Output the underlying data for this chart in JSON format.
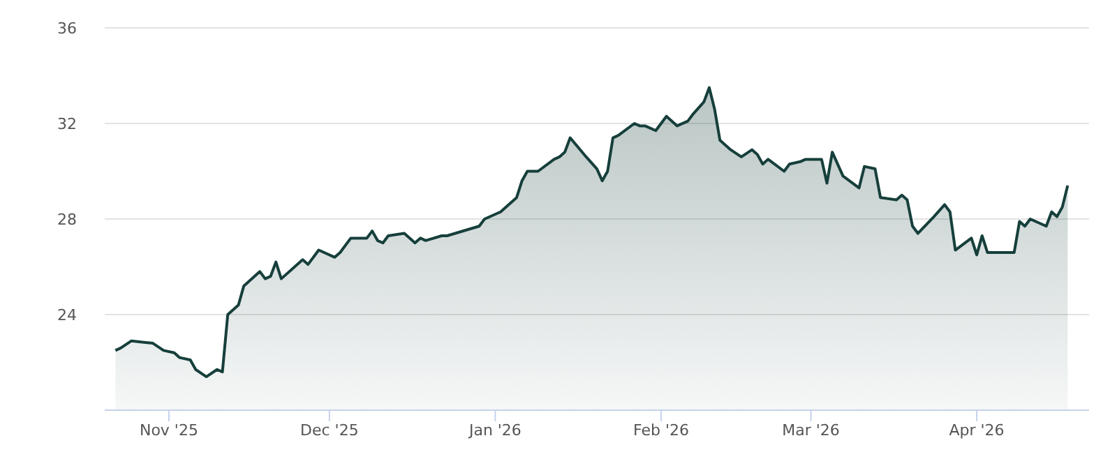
{
  "chart_data": {
    "type": "area",
    "x": [
      "2025-10-22",
      "2025-10-23",
      "2025-10-25",
      "2025-10-27",
      "2025-10-29",
      "2025-10-31",
      "2025-11-02",
      "2025-11-03",
      "2025-11-05",
      "2025-11-06",
      "2025-11-08",
      "2025-11-10",
      "2025-11-11",
      "2025-11-12",
      "2025-11-14",
      "2025-11-15",
      "2025-11-18",
      "2025-11-19",
      "2025-11-20",
      "2025-11-21",
      "2025-11-22",
      "2025-11-26",
      "2025-11-27",
      "2025-11-29",
      "2025-12-02",
      "2025-12-03",
      "2025-12-05",
      "2025-12-08",
      "2025-12-09",
      "2025-12-10",
      "2025-12-11",
      "2025-12-12",
      "2025-12-15",
      "2025-12-17",
      "2025-12-18",
      "2025-12-19",
      "2025-12-22",
      "2025-12-23",
      "2025-12-29",
      "2025-12-30",
      "2026-01-02",
      "2026-01-05",
      "2026-01-06",
      "2026-01-07",
      "2026-01-09",
      "2026-01-12",
      "2026-01-13",
      "2026-01-14",
      "2026-01-15",
      "2026-01-18",
      "2026-01-20",
      "2026-01-21",
      "2026-01-22",
      "2026-01-23",
      "2026-01-24",
      "2026-01-27",
      "2026-01-28",
      "2026-01-29",
      "2026-01-31",
      "2026-02-02",
      "2026-02-04",
      "2026-02-06",
      "2026-02-07",
      "2026-02-09",
      "2026-02-10",
      "2026-02-11",
      "2026-02-12",
      "2026-02-14",
      "2026-02-16",
      "2026-02-18",
      "2026-02-19",
      "2026-02-20",
      "2026-02-21",
      "2026-02-24",
      "2026-02-25",
      "2026-02-27",
      "2026-02-28",
      "2026-03-03",
      "2026-03-04",
      "2026-03-05",
      "2026-03-07",
      "2026-03-10",
      "2026-03-11",
      "2026-03-13",
      "2026-03-14",
      "2026-03-17",
      "2026-03-18",
      "2026-03-19",
      "2026-03-20",
      "2026-03-21",
      "2026-03-24",
      "2026-03-26",
      "2026-03-27",
      "2026-03-28",
      "2026-03-31",
      "2026-04-01",
      "2026-04-02",
      "2026-04-03",
      "2026-04-08",
      "2026-04-09",
      "2026-04-10",
      "2026-04-11",
      "2026-04-14",
      "2026-04-15",
      "2026-04-16",
      "2026-04-17",
      "2026-04-18"
    ],
    "series": [
      {
        "color": "#163f3b",
        "values": [
          22.5,
          22.6,
          22.9,
          22.85,
          22.8,
          22.5,
          22.4,
          22.2,
          22.1,
          21.7,
          21.4,
          21.7,
          21.6,
          24.0,
          24.4,
          25.2,
          25.8,
          25.5,
          25.6,
          26.2,
          25.5,
          26.3,
          26.1,
          26.7,
          26.4,
          26.6,
          27.2,
          27.2,
          27.5,
          27.1,
          27.0,
          27.3,
          27.4,
          27.0,
          27.2,
          27.1,
          27.3,
          27.3,
          27.7,
          28.0,
          28.3,
          28.9,
          29.6,
          30.0,
          30.0,
          30.5,
          30.6,
          30.8,
          31.4,
          30.6,
          30.1,
          29.6,
          30.0,
          31.4,
          31.5,
          32.0,
          31.9,
          31.9,
          31.7,
          32.3,
          31.9,
          32.1,
          32.4,
          32.9,
          33.5,
          32.6,
          31.3,
          30.9,
          30.6,
          30.9,
          30.7,
          30.3,
          30.5,
          30.0,
          30.3,
          30.4,
          30.5,
          30.5,
          29.5,
          30.8,
          29.8,
          29.3,
          30.2,
          30.1,
          28.9,
          28.8,
          29.0,
          28.8,
          27.7,
          27.4,
          28.1,
          28.6,
          28.3,
          26.7,
          27.2,
          26.5,
          27.3,
          26.6,
          26.6,
          27.9,
          27.7,
          28.0,
          27.7,
          28.3,
          28.1,
          28.5,
          29.4
        ]
      }
    ],
    "xlim": [
      "2025-10-20",
      "2026-04-22"
    ],
    "xticks": [
      {
        "value": "2025-11-01",
        "label": "Nov '25"
      },
      {
        "value": "2025-12-01",
        "label": "Dec '25"
      },
      {
        "value": "2026-01-01",
        "label": "Jan '26"
      },
      {
        "value": "2026-02-01",
        "label": "Feb '26"
      },
      {
        "value": "2026-03-01",
        "label": "Mar '26"
      },
      {
        "value": "2026-04-01",
        "label": "Apr '26"
      }
    ],
    "ylim": [
      20,
      36
    ],
    "yticks": [
      24,
      28,
      32,
      36
    ],
    "grid": "y"
  }
}
